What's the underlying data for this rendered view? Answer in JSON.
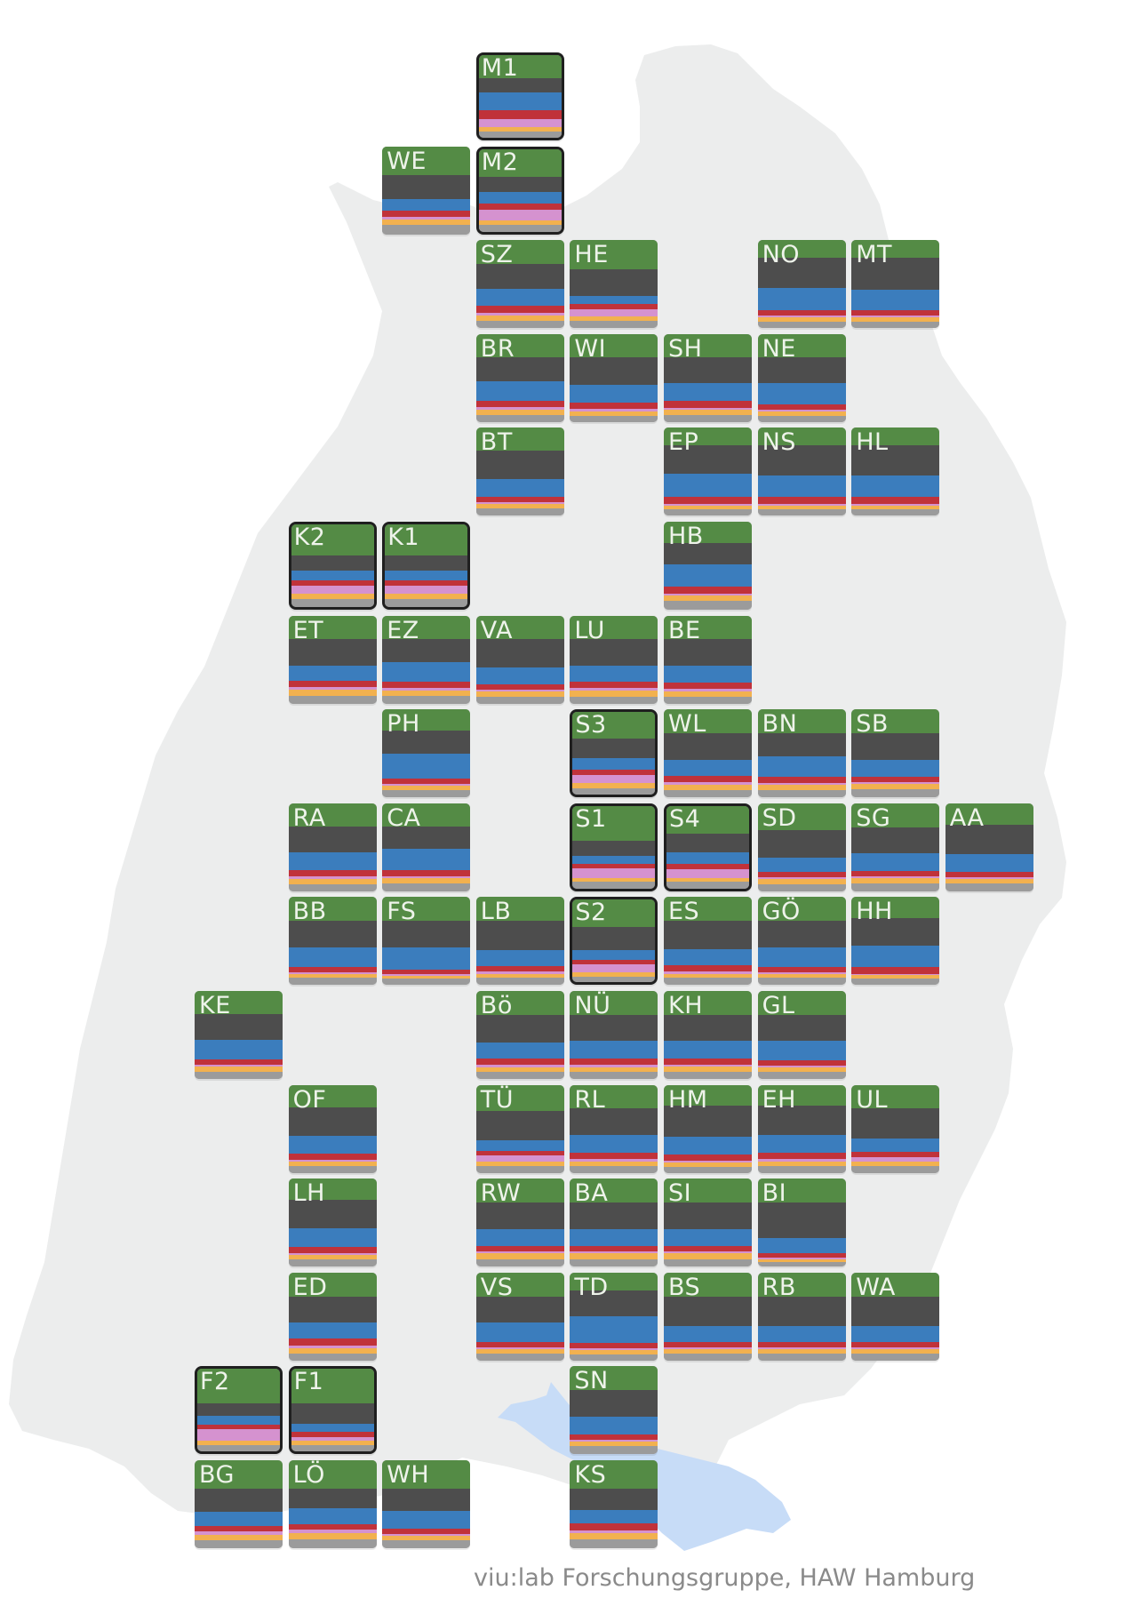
{
  "colors": {
    "green": "#548b45",
    "black": "#4d4d4d",
    "blue": "#3b7dbd",
    "red": "#c0323a",
    "pink": "#d592cf",
    "orange": "#f2b14f",
    "gray": "#9b9b9b",
    "map_land": "#eceded",
    "lake": "#c7dcf7"
  },
  "districts": [
    {
      "code": "M1",
      "highlight": true,
      "shares": [
        0.28,
        0.17,
        0.22,
        0.1,
        0.1,
        0.05,
        0.08
      ]
    },
    {
      "code": "WE",
      "highlight": false,
      "shares": [
        0.33,
        0.27,
        0.13,
        0.07,
        0.03,
        0.06,
        0.11
      ]
    },
    {
      "code": "M2",
      "highlight": true,
      "shares": [
        0.34,
        0.18,
        0.14,
        0.08,
        0.12,
        0.06,
        0.08
      ]
    },
    {
      "code": "SZ",
      "highlight": false,
      "shares": [
        0.27,
        0.28,
        0.2,
        0.08,
        0.03,
        0.06,
        0.08
      ]
    },
    {
      "code": "HE",
      "highlight": false,
      "shares": [
        0.33,
        0.3,
        0.1,
        0.06,
        0.08,
        0.05,
        0.08
      ]
    },
    {
      "code": "NO",
      "highlight": false,
      "shares": [
        0.2,
        0.34,
        0.26,
        0.06,
        0.02,
        0.05,
        0.07
      ]
    },
    {
      "code": "MT",
      "highlight": false,
      "shares": [
        0.2,
        0.36,
        0.24,
        0.06,
        0.02,
        0.05,
        0.07
      ]
    },
    {
      "code": "BR",
      "highlight": false,
      "shares": [
        0.26,
        0.28,
        0.22,
        0.07,
        0.03,
        0.06,
        0.08
      ]
    },
    {
      "code": "WI",
      "highlight": false,
      "shares": [
        0.26,
        0.32,
        0.2,
        0.07,
        0.03,
        0.05,
        0.07
      ]
    },
    {
      "code": "SH",
      "highlight": false,
      "shares": [
        0.26,
        0.3,
        0.2,
        0.08,
        0.02,
        0.06,
        0.08
      ]
    },
    {
      "code": "NE",
      "highlight": false,
      "shares": [
        0.26,
        0.3,
        0.24,
        0.06,
        0.02,
        0.05,
        0.07
      ]
    },
    {
      "code": "BT",
      "highlight": false,
      "shares": [
        0.26,
        0.32,
        0.2,
        0.06,
        0.02,
        0.06,
        0.08
      ]
    },
    {
      "code": "EP",
      "highlight": false,
      "shares": [
        0.2,
        0.32,
        0.26,
        0.08,
        0.02,
        0.05,
        0.07
      ]
    },
    {
      "code": "NS",
      "highlight": false,
      "shares": [
        0.2,
        0.34,
        0.24,
        0.08,
        0.02,
        0.05,
        0.07
      ]
    },
    {
      "code": "HL",
      "highlight": false,
      "shares": [
        0.2,
        0.34,
        0.24,
        0.08,
        0.02,
        0.05,
        0.07
      ]
    },
    {
      "code": "K2",
      "highlight": true,
      "shares": [
        0.38,
        0.18,
        0.12,
        0.06,
        0.1,
        0.06,
        0.1
      ]
    },
    {
      "code": "K1",
      "highlight": true,
      "shares": [
        0.38,
        0.18,
        0.12,
        0.06,
        0.1,
        0.06,
        0.1
      ]
    },
    {
      "code": "HB",
      "highlight": false,
      "shares": [
        0.24,
        0.24,
        0.26,
        0.08,
        0.02,
        0.06,
        0.1
      ]
    },
    {
      "code": "ET",
      "highlight": false,
      "shares": [
        0.27,
        0.3,
        0.17,
        0.07,
        0.03,
        0.07,
        0.09
      ]
    },
    {
      "code": "EZ",
      "highlight": false,
      "shares": [
        0.27,
        0.26,
        0.22,
        0.07,
        0.03,
        0.06,
        0.09
      ]
    },
    {
      "code": "VA",
      "highlight": false,
      "shares": [
        0.27,
        0.32,
        0.19,
        0.06,
        0.02,
        0.06,
        0.08
      ]
    },
    {
      "code": "LU",
      "highlight": false,
      "shares": [
        0.27,
        0.3,
        0.18,
        0.07,
        0.03,
        0.07,
        0.08
      ]
    },
    {
      "code": "BE",
      "highlight": false,
      "shares": [
        0.27,
        0.3,
        0.19,
        0.07,
        0.03,
        0.06,
        0.08
      ]
    },
    {
      "code": "PH",
      "highlight": false,
      "shares": [
        0.24,
        0.26,
        0.29,
        0.06,
        0.02,
        0.05,
        0.08
      ]
    },
    {
      "code": "S3",
      "highlight": true,
      "shares": [
        0.32,
        0.24,
        0.14,
        0.06,
        0.1,
        0.06,
        0.08
      ]
    },
    {
      "code": "WL",
      "highlight": false,
      "shares": [
        0.27,
        0.3,
        0.19,
        0.07,
        0.03,
        0.06,
        0.08
      ]
    },
    {
      "code": "BN",
      "highlight": false,
      "shares": [
        0.27,
        0.26,
        0.24,
        0.07,
        0.02,
        0.06,
        0.08
      ]
    },
    {
      "code": "SB",
      "highlight": false,
      "shares": [
        0.27,
        0.3,
        0.2,
        0.06,
        0.02,
        0.06,
        0.09
      ]
    },
    {
      "code": "RA",
      "highlight": false,
      "shares": [
        0.26,
        0.3,
        0.2,
        0.07,
        0.03,
        0.06,
        0.08
      ]
    },
    {
      "code": "CA",
      "highlight": false,
      "shares": [
        0.26,
        0.26,
        0.24,
        0.07,
        0.02,
        0.06,
        0.09
      ]
    },
    {
      "code": "S1",
      "highlight": true,
      "shares": [
        0.42,
        0.18,
        0.1,
        0.05,
        0.12,
        0.05,
        0.08
      ]
    },
    {
      "code": "S4",
      "highlight": true,
      "shares": [
        0.34,
        0.22,
        0.14,
        0.07,
        0.1,
        0.05,
        0.08
      ]
    },
    {
      "code": "SD",
      "highlight": false,
      "shares": [
        0.3,
        0.32,
        0.16,
        0.06,
        0.02,
        0.06,
        0.08
      ]
    },
    {
      "code": "SG",
      "highlight": false,
      "shares": [
        0.27,
        0.3,
        0.2,
        0.06,
        0.02,
        0.06,
        0.09
      ]
    },
    {
      "code": "AA",
      "highlight": false,
      "shares": [
        0.24,
        0.34,
        0.2,
        0.06,
        0.02,
        0.05,
        0.09
      ]
    },
    {
      "code": "BB",
      "highlight": false,
      "shares": [
        0.27,
        0.3,
        0.22,
        0.06,
        0.02,
        0.05,
        0.08
      ]
    },
    {
      "code": "FS",
      "highlight": false,
      "shares": [
        0.27,
        0.3,
        0.25,
        0.05,
        0.02,
        0.04,
        0.07
      ]
    },
    {
      "code": "LB",
      "highlight": false,
      "shares": [
        0.27,
        0.33,
        0.18,
        0.06,
        0.03,
        0.05,
        0.08
      ]
    },
    {
      "code": "S2",
      "highlight": true,
      "shares": [
        0.33,
        0.28,
        0.12,
        0.05,
        0.1,
        0.05,
        0.07
      ]
    },
    {
      "code": "ES",
      "highlight": false,
      "shares": [
        0.27,
        0.32,
        0.18,
        0.07,
        0.03,
        0.05,
        0.08
      ]
    },
    {
      "code": "GÖ",
      "highlight": false,
      "shares": [
        0.27,
        0.3,
        0.22,
        0.06,
        0.02,
        0.05,
        0.08
      ]
    },
    {
      "code": "HH",
      "highlight": false,
      "shares": [
        0.24,
        0.31,
        0.24,
        0.08,
        0.02,
        0.04,
        0.07
      ]
    },
    {
      "code": "KE",
      "highlight": false,
      "shares": [
        0.26,
        0.3,
        0.22,
        0.06,
        0.02,
        0.06,
        0.08
      ]
    },
    {
      "code": "Bö",
      "highlight": false,
      "shares": [
        0.27,
        0.32,
        0.18,
        0.07,
        0.03,
        0.05,
        0.08
      ]
    },
    {
      "code": "NÜ",
      "highlight": false,
      "shares": [
        0.27,
        0.3,
        0.2,
        0.07,
        0.03,
        0.05,
        0.08
      ]
    },
    {
      "code": "KH",
      "highlight": false,
      "shares": [
        0.27,
        0.3,
        0.2,
        0.07,
        0.02,
        0.06,
        0.08
      ]
    },
    {
      "code": "GL",
      "highlight": false,
      "shares": [
        0.27,
        0.3,
        0.22,
        0.06,
        0.02,
        0.05,
        0.08
      ]
    },
    {
      "code": "OF",
      "highlight": false,
      "shares": [
        0.26,
        0.32,
        0.2,
        0.07,
        0.02,
        0.05,
        0.08
      ]
    },
    {
      "code": "TÜ",
      "highlight": false,
      "shares": [
        0.3,
        0.33,
        0.12,
        0.05,
        0.07,
        0.05,
        0.08
      ]
    },
    {
      "code": "RL",
      "highlight": false,
      "shares": [
        0.27,
        0.3,
        0.2,
        0.07,
        0.03,
        0.05,
        0.08
      ]
    },
    {
      "code": "HM",
      "highlight": false,
      "shares": [
        0.24,
        0.35,
        0.2,
        0.07,
        0.02,
        0.05,
        0.07
      ]
    },
    {
      "code": "EH",
      "highlight": false,
      "shares": [
        0.24,
        0.33,
        0.2,
        0.07,
        0.03,
        0.05,
        0.08
      ]
    },
    {
      "code": "UL",
      "highlight": false,
      "shares": [
        0.27,
        0.34,
        0.15,
        0.06,
        0.05,
        0.05,
        0.08
      ]
    },
    {
      "code": "LH",
      "highlight": false,
      "shares": [
        0.24,
        0.32,
        0.22,
        0.07,
        0.02,
        0.05,
        0.08
      ]
    },
    {
      "code": "RW",
      "highlight": false,
      "shares": [
        0.27,
        0.3,
        0.2,
        0.06,
        0.02,
        0.07,
        0.08
      ]
    },
    {
      "code": "BA",
      "highlight": false,
      "shares": [
        0.27,
        0.3,
        0.2,
        0.06,
        0.02,
        0.07,
        0.08
      ]
    },
    {
      "code": "SI",
      "highlight": false,
      "shares": [
        0.27,
        0.3,
        0.2,
        0.06,
        0.02,
        0.07,
        0.08
      ]
    },
    {
      "code": "BI",
      "highlight": false,
      "shares": [
        0.27,
        0.4,
        0.18,
        0.05,
        0.02,
        0.03,
        0.05
      ]
    },
    {
      "code": "ED",
      "highlight": false,
      "shares": [
        0.27,
        0.3,
        0.18,
        0.08,
        0.03,
        0.06,
        0.08
      ]
    },
    {
      "code": "VS",
      "highlight": false,
      "shares": [
        0.27,
        0.3,
        0.22,
        0.06,
        0.02,
        0.05,
        0.08
      ]
    },
    {
      "code": "TD",
      "highlight": false,
      "shares": [
        0.2,
        0.3,
        0.3,
        0.06,
        0.02,
        0.05,
        0.07
      ]
    },
    {
      "code": "BS",
      "highlight": false,
      "shares": [
        0.27,
        0.34,
        0.18,
        0.06,
        0.02,
        0.05,
        0.08
      ]
    },
    {
      "code": "RB",
      "highlight": false,
      "shares": [
        0.27,
        0.34,
        0.18,
        0.06,
        0.02,
        0.05,
        0.08
      ]
    },
    {
      "code": "WA",
      "highlight": false,
      "shares": [
        0.27,
        0.34,
        0.18,
        0.06,
        0.02,
        0.05,
        0.08
      ]
    },
    {
      "code": "F2",
      "highlight": true,
      "shares": [
        0.42,
        0.15,
        0.1,
        0.06,
        0.14,
        0.05,
        0.08
      ]
    },
    {
      "code": "F1",
      "highlight": true,
      "shares": [
        0.42,
        0.24,
        0.1,
        0.06,
        0.05,
        0.05,
        0.08
      ]
    },
    {
      "code": "SN",
      "highlight": false,
      "shares": [
        0.27,
        0.3,
        0.2,
        0.06,
        0.02,
        0.06,
        0.09
      ]
    },
    {
      "code": "BG",
      "highlight": false,
      "shares": [
        0.32,
        0.27,
        0.16,
        0.06,
        0.04,
        0.06,
        0.09
      ]
    },
    {
      "code": "LÖ",
      "highlight": false,
      "shares": [
        0.32,
        0.23,
        0.18,
        0.06,
        0.04,
        0.07,
        0.1
      ]
    },
    {
      "code": "WH",
      "highlight": false,
      "shares": [
        0.32,
        0.26,
        0.2,
        0.06,
        0.02,
        0.05,
        0.09
      ]
    },
    {
      "code": "KS",
      "highlight": false,
      "shares": [
        0.32,
        0.25,
        0.15,
        0.08,
        0.03,
        0.07,
        0.1
      ]
    }
  ],
  "credit": "viu:lab Forschungsgruppe, HAW Hamburg"
}
